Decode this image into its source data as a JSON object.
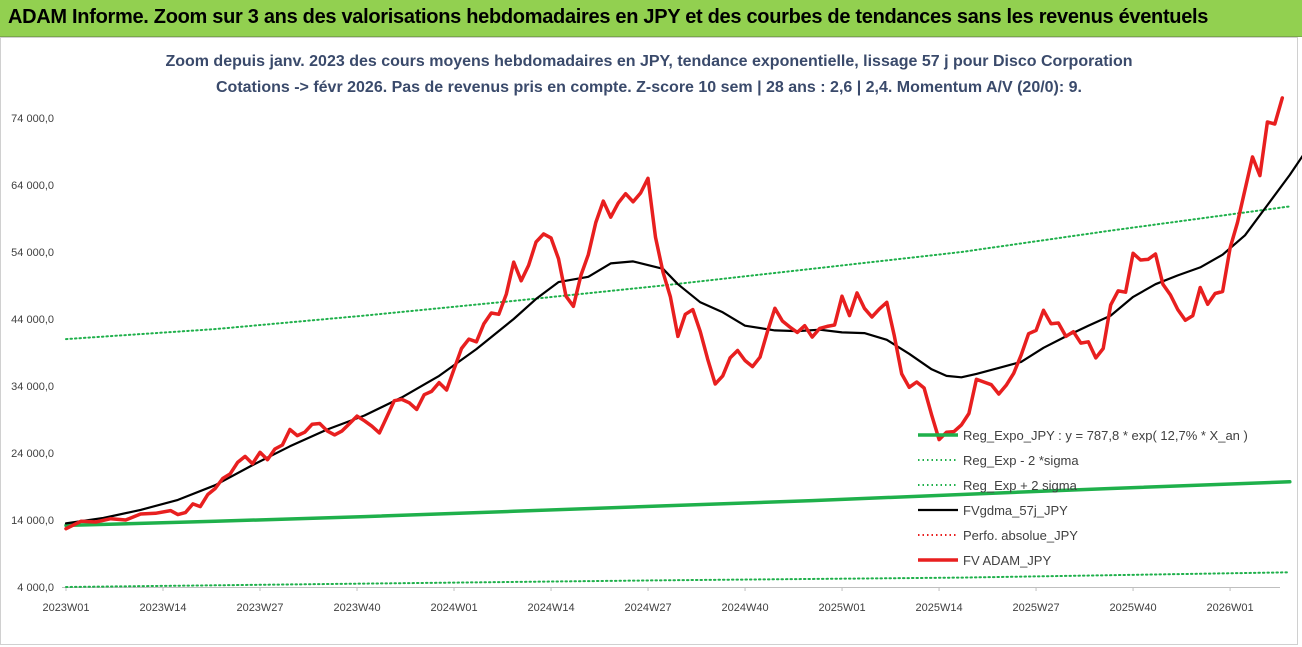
{
  "banner": {
    "title": "ADAM Informe. Zoom sur 3 ans des valorisations hebdomadaires en JPY et des courbes de tendances sans les revenus éventuels"
  },
  "chart_data": {
    "type": "line",
    "title": "Zoom depuis janv. 2023 des cours moyens hebdomadaires en JPY, tendance exponentielle, lissage 57 j pour Disco Corporation",
    "subtitle": "Cotations -> févr 2026.  Pas de revenus pris en compte. Z-score 10 sem | 28 ans : 2,6 | 2,4. Momentum A/V (20/0): 9.",
    "xlabel": "",
    "ylabel": "",
    "ylim": [
      4000,
      78000
    ],
    "x_range": [
      0,
      163
    ],
    "grid": false,
    "legend_position": "right",
    "y_ticks": [
      {
        "value": 4000,
        "label": "4 000,0"
      },
      {
        "value": 14000,
        "label": "14 000,0"
      },
      {
        "value": 24000,
        "label": "24 000,0"
      },
      {
        "value": 34000,
        "label": "34 000,0"
      },
      {
        "value": 44000,
        "label": "44 000,0"
      },
      {
        "value": 54000,
        "label": "54 000,0"
      },
      {
        "value": 64000,
        "label": "64 000,0"
      },
      {
        "value": 74000,
        "label": "74 000,0"
      }
    ],
    "x_ticks": [
      {
        "index": 0,
        "label": "2023W01"
      },
      {
        "index": 13,
        "label": "2023W14"
      },
      {
        "index": 26,
        "label": "2023W27"
      },
      {
        "index": 39,
        "label": "2023W40"
      },
      {
        "index": 52,
        "label": "2024W01"
      },
      {
        "index": 65,
        "label": "2024W14"
      },
      {
        "index": 78,
        "label": "2024W27"
      },
      {
        "index": 91,
        "label": "2024W40"
      },
      {
        "index": 104,
        "label": "2025W01"
      },
      {
        "index": 117,
        "label": "2025W14"
      },
      {
        "index": 130,
        "label": "2025W27"
      },
      {
        "index": 143,
        "label": "2025W40"
      },
      {
        "index": 156,
        "label": "2026W01"
      }
    ],
    "series": [
      {
        "name": "Reg_Expo_JPY : y = 787,8 * exp( 12,7% *  X_an )",
        "color": "#1fb04b",
        "style": "thick",
        "points": [
          [
            0,
            13200
          ],
          [
            20,
            13800
          ],
          [
            40,
            14500
          ],
          [
            60,
            15300
          ],
          [
            80,
            16100
          ],
          [
            100,
            16900
          ],
          [
            120,
            17800
          ],
          [
            140,
            18700
          ],
          [
            164,
            19700
          ]
        ]
      },
      {
        "name": "Reg_Exp - 2 *sigma",
        "color": "#1fb04b",
        "style": "dotted",
        "points": [
          [
            0,
            4000
          ],
          [
            40,
            4500
          ],
          [
            80,
            5000
          ],
          [
            120,
            5400
          ],
          [
            164,
            6200
          ]
        ]
      },
      {
        "name": "Reg_Exp + 2 sigma",
        "color": "#1fb04b",
        "style": "dotted",
        "points": [
          [
            0,
            41000
          ],
          [
            20,
            42500
          ],
          [
            40,
            44500
          ],
          [
            60,
            46700
          ],
          [
            80,
            49000
          ],
          [
            100,
            51500
          ],
          [
            120,
            54000
          ],
          [
            140,
            57200
          ],
          [
            164,
            60800
          ]
        ]
      },
      {
        "name": "FVgdma_57j_JPY",
        "color": "#000000",
        "style": "solid",
        "points": [
          [
            0,
            13500
          ],
          [
            5,
            14300
          ],
          [
            10,
            15500
          ],
          [
            15,
            17000
          ],
          [
            20,
            19200
          ],
          [
            25,
            22200
          ],
          [
            30,
            25000
          ],
          [
            35,
            27500
          ],
          [
            40,
            29600
          ],
          [
            45,
            32300
          ],
          [
            50,
            35500
          ],
          [
            55,
            39500
          ],
          [
            60,
            44000
          ],
          [
            63,
            47000
          ],
          [
            66,
            49500
          ],
          [
            70,
            50300
          ],
          [
            73,
            52300
          ],
          [
            76,
            52600
          ],
          [
            80,
            51500
          ],
          [
            82,
            49200
          ],
          [
            85,
            46500
          ],
          [
            88,
            45000
          ],
          [
            91,
            43000
          ],
          [
            95,
            42300
          ],
          [
            98,
            42200
          ],
          [
            101,
            42400
          ],
          [
            104,
            42000
          ],
          [
            107,
            41900
          ],
          [
            110,
            40900
          ],
          [
            113,
            38800
          ],
          [
            116,
            36500
          ],
          [
            118,
            35500
          ],
          [
            120,
            35300
          ],
          [
            122,
            35800
          ],
          [
            125,
            36700
          ],
          [
            128,
            37600
          ],
          [
            131,
            39700
          ],
          [
            134,
            41400
          ],
          [
            137,
            43000
          ],
          [
            140,
            44500
          ],
          [
            143,
            47300
          ],
          [
            146,
            49200
          ],
          [
            149,
            50500
          ],
          [
            152,
            51700
          ],
          [
            155,
            53600
          ],
          [
            158,
            56500
          ],
          [
            161,
            61000
          ],
          [
            164,
            65500
          ],
          [
            166,
            68800
          ]
        ]
      },
      {
        "name": "Perfo. absolue_JPY",
        "color": "#e81f1f",
        "style": "dotted",
        "points": []
      },
      {
        "name": "FV ADAM_JPY",
        "color": "#e81f1f",
        "style": "thick",
        "points": [
          [
            0,
            12700
          ],
          [
            2,
            13800
          ],
          [
            4,
            13700
          ],
          [
            6,
            14200
          ],
          [
            8,
            14000
          ],
          [
            10,
            14900
          ],
          [
            12,
            15000
          ],
          [
            14,
            15400
          ],
          [
            15,
            14800
          ],
          [
            16,
            15100
          ],
          [
            17,
            16400
          ],
          [
            18,
            16000
          ],
          [
            19,
            17800
          ],
          [
            20,
            18700
          ],
          [
            21,
            20200
          ],
          [
            22,
            20900
          ],
          [
            23,
            22600
          ],
          [
            24,
            23500
          ],
          [
            25,
            22400
          ],
          [
            26,
            24100
          ],
          [
            27,
            23000
          ],
          [
            28,
            24600
          ],
          [
            29,
            25200
          ],
          [
            30,
            27500
          ],
          [
            31,
            26600
          ],
          [
            32,
            27100
          ],
          [
            33,
            28300
          ],
          [
            34,
            28400
          ],
          [
            35,
            27300
          ],
          [
            36,
            26700
          ],
          [
            37,
            27300
          ],
          [
            38,
            28400
          ],
          [
            39,
            29500
          ],
          [
            40,
            28800
          ],
          [
            41,
            28000
          ],
          [
            42,
            27000
          ],
          [
            43,
            29400
          ],
          [
            44,
            31800
          ],
          [
            45,
            32000
          ],
          [
            46,
            31500
          ],
          [
            47,
            30500
          ],
          [
            48,
            32700
          ],
          [
            49,
            33200
          ],
          [
            50,
            34500
          ],
          [
            51,
            33400
          ],
          [
            52,
            36500
          ],
          [
            53,
            39600
          ],
          [
            54,
            41000
          ],
          [
            55,
            40600
          ],
          [
            56,
            43300
          ],
          [
            57,
            44900
          ],
          [
            58,
            44700
          ],
          [
            59,
            47700
          ],
          [
            60,
            52500
          ],
          [
            61,
            49700
          ],
          [
            62,
            52000
          ],
          [
            63,
            55500
          ],
          [
            64,
            56700
          ],
          [
            65,
            56100
          ],
          [
            66,
            53000
          ],
          [
            67,
            47400
          ],
          [
            68,
            45900
          ],
          [
            69,
            50500
          ],
          [
            70,
            53600
          ],
          [
            71,
            58400
          ],
          [
            72,
            61600
          ],
          [
            73,
            59200
          ],
          [
            74,
            61300
          ],
          [
            75,
            62700
          ],
          [
            76,
            61500
          ],
          [
            77,
            62800
          ],
          [
            78,
            65000
          ],
          [
            79,
            56200
          ],
          [
            80,
            51000
          ],
          [
            81,
            47300
          ],
          [
            82,
            41400
          ],
          [
            83,
            44700
          ],
          [
            84,
            45400
          ],
          [
            85,
            42100
          ],
          [
            86,
            38000
          ],
          [
            87,
            34300
          ],
          [
            88,
            35500
          ],
          [
            89,
            38200
          ],
          [
            90,
            39300
          ],
          [
            91,
            37800
          ],
          [
            92,
            36900
          ],
          [
            93,
            38300
          ],
          [
            94,
            42100
          ],
          [
            95,
            45600
          ],
          [
            96,
            43700
          ],
          [
            97,
            42800
          ],
          [
            98,
            42000
          ],
          [
            99,
            43000
          ],
          [
            100,
            41300
          ],
          [
            101,
            42600
          ],
          [
            102,
            42900
          ],
          [
            103,
            43100
          ],
          [
            104,
            47400
          ],
          [
            105,
            44500
          ],
          [
            106,
            47900
          ],
          [
            107,
            45600
          ],
          [
            108,
            44300
          ],
          [
            109,
            45500
          ],
          [
            110,
            46500
          ],
          [
            111,
            41500
          ],
          [
            112,
            35800
          ],
          [
            113,
            33800
          ],
          [
            114,
            34600
          ],
          [
            115,
            33700
          ],
          [
            116,
            29700
          ],
          [
            117,
            26000
          ],
          [
            118,
            27100
          ],
          [
            119,
            27200
          ],
          [
            120,
            28200
          ],
          [
            121,
            29900
          ],
          [
            122,
            35000
          ],
          [
            123,
            34600
          ],
          [
            124,
            34200
          ],
          [
            125,
            32800
          ],
          [
            126,
            34100
          ],
          [
            127,
            35900
          ],
          [
            128,
            38600
          ],
          [
            129,
            41800
          ],
          [
            130,
            42300
          ],
          [
            131,
            45300
          ],
          [
            132,
            43300
          ],
          [
            133,
            43400
          ],
          [
            134,
            41400
          ],
          [
            135,
            42100
          ],
          [
            136,
            40400
          ],
          [
            137,
            40600
          ],
          [
            138,
            38200
          ],
          [
            139,
            39600
          ],
          [
            140,
            46100
          ],
          [
            141,
            48200
          ],
          [
            142,
            48000
          ],
          [
            143,
            53800
          ],
          [
            144,
            52800
          ],
          [
            145,
            52900
          ],
          [
            146,
            53700
          ],
          [
            147,
            49200
          ],
          [
            148,
            47600
          ],
          [
            149,
            45400
          ],
          [
            150,
            43800
          ],
          [
            151,
            44500
          ],
          [
            152,
            48700
          ],
          [
            153,
            46200
          ],
          [
            154,
            47800
          ],
          [
            155,
            48100
          ],
          [
            156,
            54600
          ],
          [
            157,
            58400
          ],
          [
            158,
            63300
          ],
          [
            159,
            68200
          ],
          [
            160,
            65400
          ],
          [
            161,
            73400
          ],
          [
            162,
            73100
          ],
          [
            163,
            77000
          ]
        ]
      }
    ]
  }
}
